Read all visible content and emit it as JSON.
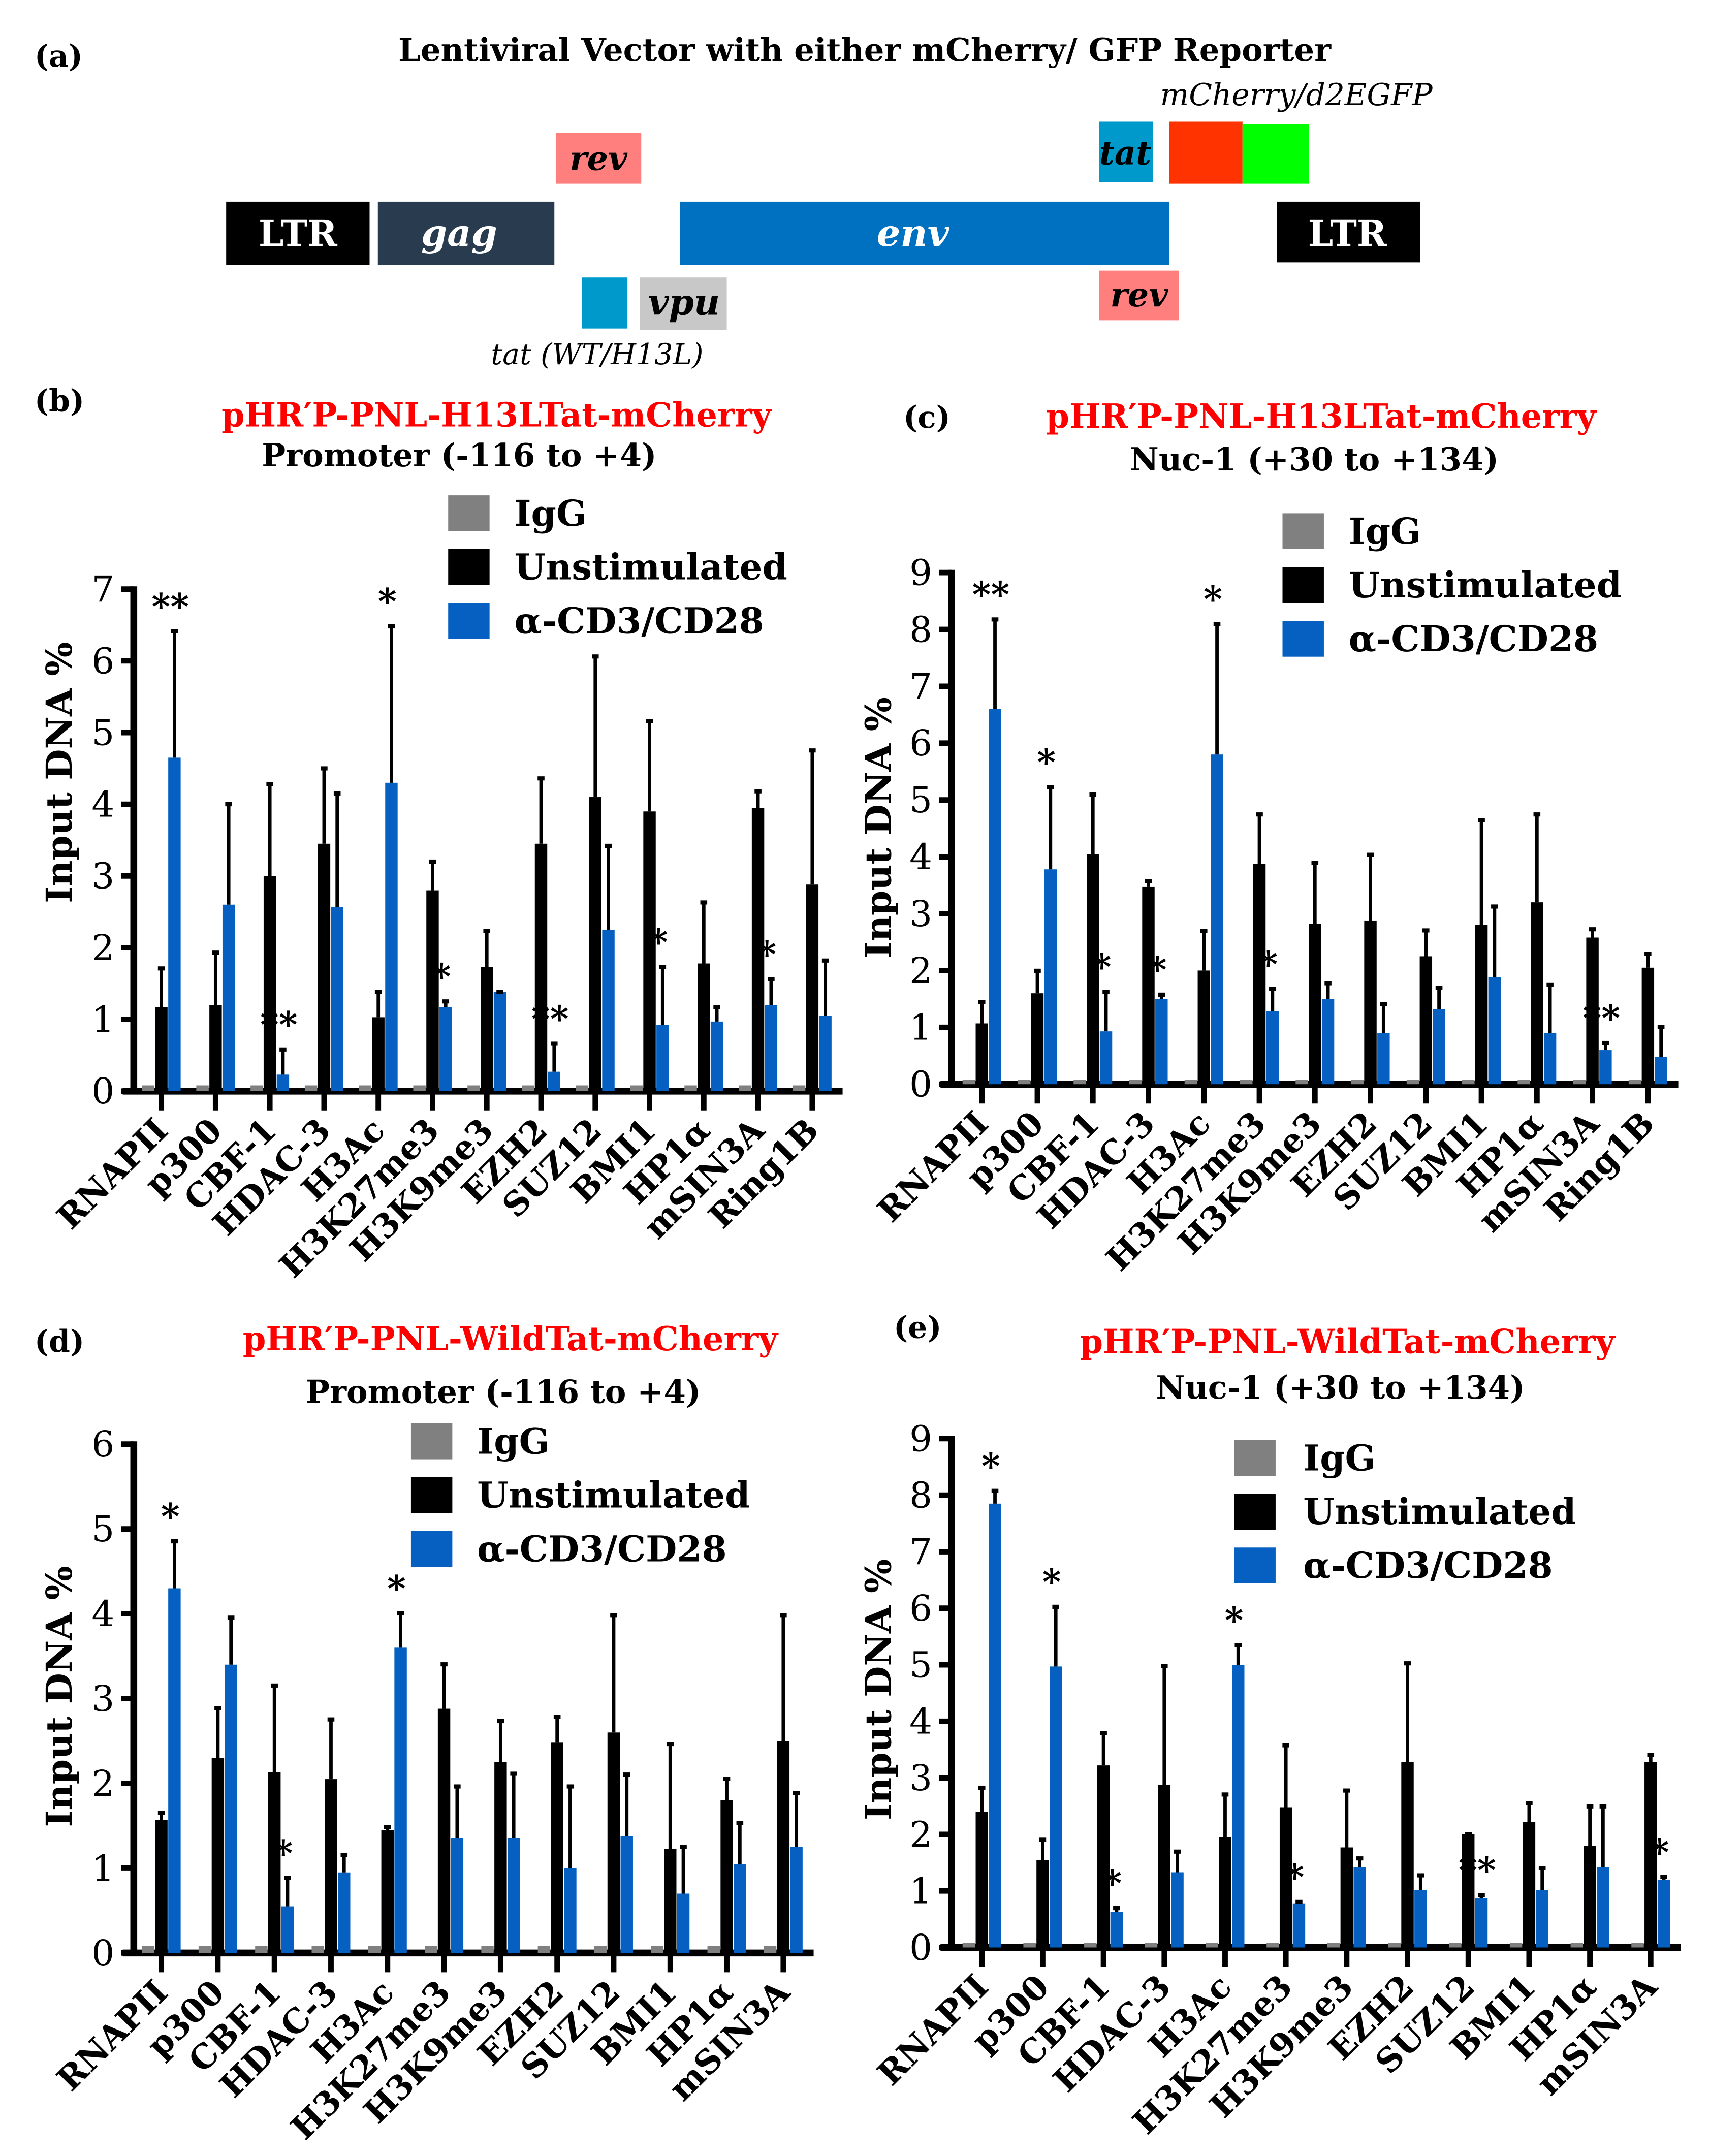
{
  "panel_a": {
    "label": "(a)",
    "title": "Lentiviral Vector with either mCherry/ GFP Reporter",
    "reporter_label": "mCherry/d2EGFP",
    "genes": {
      "ltr_left": "LTR",
      "gag": "gag",
      "env": "env",
      "ltr_right": "LTR",
      "rev_top": "rev",
      "tat_top": "tat",
      "vpu": "vpu",
      "rev_bottom": "rev"
    },
    "tat_label": "tat (WT/H13L)",
    "colors": {
      "ltr": "#000000",
      "gag": "#293b4f",
      "env": "#0070c0",
      "rev": "#ff7f7f",
      "tat": "#0099cc",
      "mcherry": "#ff3300",
      "gfp": "#00ff00",
      "vpu": "#c8c8c8"
    }
  },
  "chart_data": [
    {
      "type": "bar",
      "panel_label": "(b)",
      "title": "pHR′P-PNL-H13LTat-mCherry",
      "subtitle": "Promoter (-116 to +4)",
      "ylabel": "Input DNA %",
      "xlabel": "",
      "ylim": [
        0,
        7
      ],
      "yticks": [
        0,
        1,
        2,
        3,
        4,
        5,
        6,
        7
      ],
      "legend": "top-center",
      "categories": [
        "RNAPII",
        "p300",
        "CBF-1",
        "HDAC-3",
        "H3Ac",
        "H3K27me3",
        "H3K9me3",
        "EZH2",
        "SUZ12",
        "BMI1",
        "HP1α",
        "mSIN3A",
        "Ring1B"
      ],
      "series": [
        {
          "name": "IgG",
          "color": "#808080",
          "values": [
            0.08,
            0.08,
            0.08,
            0.08,
            0.08,
            0.08,
            0.08,
            0.08,
            0.08,
            0.08,
            0.08,
            0.08,
            0.08
          ]
        },
        {
          "name": "Unstimulated",
          "color": "#000000",
          "values": [
            1.17,
            1.2,
            3.0,
            3.45,
            1.03,
            2.8,
            1.73,
            3.45,
            4.1,
            3.9,
            1.78,
            3.95,
            2.88
          ],
          "error_top": [
            1.73,
            1.95,
            4.3,
            4.52,
            1.4,
            3.22,
            2.25,
            4.38,
            6.08,
            5.18,
            2.65,
            4.2,
            4.77
          ]
        },
        {
          "name": "α-CD3/CD28",
          "color": "#0560c2",
          "values": [
            4.65,
            2.6,
            0.23,
            2.57,
            4.3,
            1.17,
            1.38,
            0.27,
            2.25,
            0.92,
            0.97,
            1.2,
            1.05
          ],
          "error_top": [
            6.43,
            4.02,
            0.6,
            4.17,
            6.5,
            1.27,
            1.4,
            0.68,
            3.44,
            1.75,
            1.19,
            1.58,
            1.84
          ]
        }
      ],
      "significance": [
        "**",
        "",
        "**",
        "",
        "*",
        "*",
        "",
        "**",
        "",
        "*",
        "",
        "*",
        ""
      ]
    },
    {
      "type": "bar",
      "panel_label": "(c)",
      "title": "pHR′P-PNL-H13LTat-mCherry",
      "subtitle": "Nuc-1 (+30 to +134)",
      "ylabel": "Input DNA %",
      "xlabel": "",
      "ylim": [
        0,
        9
      ],
      "yticks": [
        0,
        1,
        2,
        3,
        4,
        5,
        6,
        7,
        8,
        9
      ],
      "legend": "top-right",
      "categories": [
        "RNAPII",
        "p300",
        "CBF-1",
        "HDAC-3",
        "H3Ac",
        "H3K27me3",
        "H3K9me3",
        "EZH2",
        "SUZ12",
        "BMI1",
        "HP1α",
        "mSIN3A",
        "Ring1B"
      ],
      "series": [
        {
          "name": "IgG",
          "color": "#808080",
          "values": [
            0.08,
            0.08,
            0.08,
            0.08,
            0.08,
            0.08,
            0.08,
            0.08,
            0.08,
            0.08,
            0.08,
            0.08,
            0.08
          ]
        },
        {
          "name": "Unstimulated",
          "color": "#000000",
          "values": [
            1.07,
            1.6,
            4.05,
            3.47,
            2.0,
            3.88,
            2.82,
            2.88,
            2.25,
            2.8,
            3.2,
            2.58,
            2.05
          ],
          "error_top": [
            1.47,
            2.02,
            5.12,
            3.6,
            2.72,
            4.77,
            3.92,
            4.06,
            2.73,
            4.67,
            4.77,
            2.75,
            2.32
          ]
        },
        {
          "name": "α-CD3/CD28",
          "color": "#0560c2",
          "values": [
            6.6,
            3.78,
            0.93,
            1.5,
            5.8,
            1.28,
            1.5,
            0.9,
            1.32,
            1.88,
            0.9,
            0.6,
            0.48
          ],
          "error_top": [
            8.2,
            5.25,
            1.65,
            1.6,
            8.12,
            1.7,
            1.8,
            1.43,
            1.72,
            3.15,
            1.77,
            0.75,
            1.03
          ]
        }
      ],
      "significance": [
        "**",
        "*",
        "*",
        "*",
        "*",
        "*",
        "",
        "",
        "",
        "",
        "",
        "**",
        ""
      ]
    },
    {
      "type": "bar",
      "panel_label": "(d)",
      "title": "pHR′P-PNL-WildTat-mCherry",
      "subtitle": "Promoter (-116 to +4)",
      "ylabel": "Input DNA %",
      "xlabel": "",
      "ylim": [
        0,
        6
      ],
      "yticks": [
        0,
        1,
        2,
        3,
        4,
        5,
        6
      ],
      "legend": "top-center",
      "categories": [
        "RNAPII",
        "p300",
        "CBF-1",
        "HDAC-3",
        "H3Ac",
        "H3K27me3",
        "H3K9me3",
        "EZH2",
        "SUZ12",
        "BMI1",
        "HP1α",
        "mSIN3A"
      ],
      "series": [
        {
          "name": "IgG",
          "color": "#808080",
          "values": [
            0.08,
            0.08,
            0.08,
            0.08,
            0.08,
            0.08,
            0.08,
            0.08,
            0.08,
            0.08,
            0.08,
            0.08
          ]
        },
        {
          "name": "Unstimulated",
          "color": "#000000",
          "values": [
            1.57,
            2.3,
            2.13,
            2.05,
            1.45,
            2.88,
            2.25,
            2.48,
            2.6,
            1.23,
            1.8,
            2.5
          ],
          "error_top": [
            1.67,
            2.9,
            3.17,
            2.77,
            1.5,
            3.42,
            2.75,
            2.8,
            4.0,
            2.48,
            2.07,
            4.0
          ]
        },
        {
          "name": "α-CD3/CD28",
          "color": "#0560c2",
          "values": [
            4.3,
            3.4,
            0.55,
            0.95,
            3.6,
            1.35,
            1.35,
            1.0,
            1.38,
            0.7,
            1.05,
            1.25
          ],
          "error_top": [
            4.87,
            3.97,
            0.9,
            1.17,
            4.02,
            1.98,
            2.13,
            1.98,
            2.12,
            1.27,
            1.55,
            1.9
          ]
        }
      ],
      "significance": [
        "*",
        "",
        "*",
        "",
        "*",
        "",
        "",
        "",
        "",
        "",
        "",
        ""
      ]
    },
    {
      "type": "bar",
      "panel_label": "(e)",
      "title": "pHR′P-PNL-WildTat-mCherry",
      "subtitle": "Nuc-1 (+30 to +134)",
      "ylabel": "Input DNA %",
      "xlabel": "",
      "ylim": [
        0,
        9
      ],
      "yticks": [
        0,
        1,
        2,
        3,
        4,
        5,
        6,
        7,
        8,
        9
      ],
      "legend": "top-right",
      "categories": [
        "RNAPII",
        "p300",
        "CBF-1",
        "HDAC-3",
        "H3Ac",
        "H3K27me3",
        "H3K9me3",
        "EZH2",
        "SUZ12",
        "BMI1",
        "HP1α",
        "mSIN3A"
      ],
      "series": [
        {
          "name": "IgG",
          "color": "#808080",
          "values": [
            0.08,
            0.08,
            0.08,
            0.08,
            0.08,
            0.08,
            0.08,
            0.08,
            0.08,
            0.08,
            0.08,
            0.08
          ]
        },
        {
          "name": "Unstimulated",
          "color": "#000000",
          "values": [
            2.4,
            1.55,
            3.22,
            2.88,
            1.95,
            2.48,
            1.77,
            3.28,
            2.0,
            2.22,
            1.8,
            3.28
          ],
          "error_top": [
            2.85,
            1.93,
            3.82,
            5.0,
            2.73,
            3.6,
            2.8,
            5.05,
            2.03,
            2.58,
            2.52,
            3.43
          ]
        },
        {
          "name": "α-CD3/CD28",
          "color": "#0560c2",
          "values": [
            7.85,
            4.97,
            0.63,
            1.33,
            5.0,
            0.78,
            1.42,
            1.02,
            0.87,
            1.02,
            1.42,
            1.2
          ],
          "error_top": [
            8.1,
            6.05,
            0.72,
            1.72,
            5.37,
            0.83,
            1.6,
            1.3,
            0.95,
            1.43,
            2.52,
            1.27
          ]
        }
      ],
      "significance": [
        "*",
        "*",
        "*",
        "",
        "*",
        "*",
        "",
        "",
        "**",
        "",
        "",
        "*"
      ]
    }
  ]
}
